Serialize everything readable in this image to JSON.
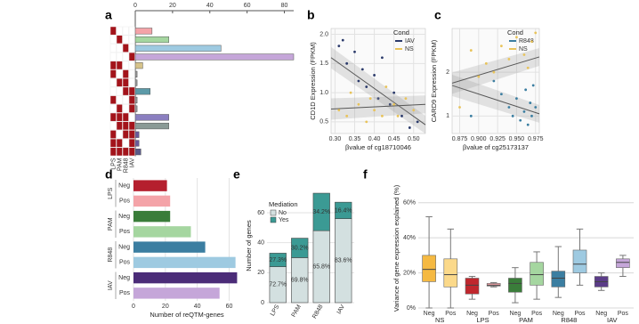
{
  "chart_data": [
    {
      "type": "upset",
      "panel_label": "a",
      "sets": [
        "LPS",
        "PAM",
        "R848",
        "IAV"
      ],
      "values": [
        9,
        18,
        46,
        85,
        4,
        1,
        1,
        8,
        1,
        1,
        18,
        18,
        2,
        2,
        3
      ],
      "colors": [
        "#f4a3a8",
        "#a5d6a0",
        "#9ecae1",
        "#c5a6d9",
        "#d6c38a",
        "#9a9a9a",
        "#9a9a9a",
        "#5c9aa8",
        "#9a9a9a",
        "#9a9a9a",
        "#8b7fc0",
        "#8a9a96",
        "#6b5b9a",
        "#6b5b9a",
        "#5b5b8a"
      ],
      "membership": [
        [
          1,
          0,
          0,
          0
        ],
        [
          0,
          1,
          0,
          0
        ],
        [
          0,
          0,
          1,
          0
        ],
        [
          0,
          0,
          0,
          1
        ],
        [
          1,
          1,
          0,
          0
        ],
        [
          1,
          0,
          1,
          0
        ],
        [
          0,
          1,
          1,
          0
        ],
        [
          0,
          0,
          1,
          1
        ],
        [
          1,
          0,
          0,
          1
        ],
        [
          0,
          1,
          0,
          1
        ],
        [
          1,
          1,
          1,
          0
        ],
        [
          0,
          1,
          1,
          1
        ],
        [
          1,
          0,
          1,
          1
        ],
        [
          1,
          1,
          0,
          1
        ],
        [
          1,
          1,
          1,
          1
        ]
      ],
      "xlim": [
        0,
        85
      ],
      "xticks": [
        0,
        20,
        40,
        60,
        80
      ]
    },
    {
      "type": "scatter",
      "panel_label": "b",
      "x_label": "βvalue of cg18710046",
      "y_label": "CD1D Expression (FPKM)",
      "legend_title": "Cond",
      "xlim": [
        0.29,
        0.53
      ],
      "ylim": [
        0.3,
        2.1
      ],
      "xticks": [
        {
          "value": 0.3,
          "label": "0.30"
        },
        0.35,
        {
          "value": 0.4,
          "label": "0.40"
        },
        0.45,
        {
          "value": 0.5,
          "label": "0.50"
        }
      ],
      "yticks": [
        0.5,
        {
          "value": 1,
          "label": "1.0"
        },
        1.5,
        {
          "value": 2,
          "label": "2.0"
        }
      ],
      "series": [
        {
          "name": "IAV",
          "color": "#2b3a6b",
          "trend": [
            1.6,
            0.45
          ],
          "x": [
            0.31,
            0.32,
            0.33,
            0.35,
            0.36,
            0.37,
            0.38,
            0.4,
            0.41,
            0.42,
            0.44,
            0.45,
            0.47,
            0.49,
            0.51
          ],
          "values": [
            1.8,
            1.9,
            1.5,
            1.7,
            1.2,
            1.4,
            1.1,
            1.3,
            0.9,
            1.6,
            0.8,
            1.0,
            0.6,
            0.4,
            0.5
          ]
        },
        {
          "name": "NS",
          "color": "#e8c35a",
          "trend": [
            0.72,
            0.8
          ],
          "x": [
            0.31,
            0.33,
            0.34,
            0.36,
            0.38,
            0.39,
            0.4,
            0.42,
            0.43,
            0.45,
            0.46,
            0.48,
            0.5
          ],
          "values": [
            0.7,
            0.6,
            1.0,
            0.8,
            0.5,
            0.9,
            0.7,
            0.6,
            1.1,
            0.8,
            0.6,
            0.9,
            0.7
          ]
        }
      ]
    },
    {
      "type": "scatter",
      "panel_label": "c",
      "x_label": "βvalue of cg25173137",
      "y_label": "CARD9 Expression (FPKM)",
      "legend_title": "Cond",
      "xlim": [
        0.865,
        0.98
      ],
      "ylim": [
        0.6,
        3.0
      ],
      "xticks": [
        0.875,
        {
          "value": 0.9,
          "label": "0.900"
        },
        0.925,
        {
          "value": 0.95,
          "label": "0.950"
        },
        0.975
      ],
      "yticks": [
        1,
        2
      ],
      "series": [
        {
          "name": "R848",
          "color": "#3b7ea1",
          "trend": [
            1.7,
            1.05
          ],
          "x": [
            0.89,
            0.92,
            0.93,
            0.94,
            0.945,
            0.95,
            0.955,
            0.96,
            0.962,
            0.965,
            0.968,
            0.97,
            0.972,
            0.975
          ],
          "values": [
            1.0,
            1.8,
            1.5,
            1.2,
            1.0,
            1.4,
            0.9,
            1.1,
            1.6,
            0.8,
            1.3,
            1.0,
            1.7,
            1.2
          ]
        },
        {
          "name": "NS",
          "color": "#e8c35a",
          "trend": [
            1.75,
            2.35
          ],
          "x": [
            0.875,
            0.89,
            0.9,
            0.91,
            0.92,
            0.93,
            0.94,
            0.95,
            0.96,
            0.965,
            0.97,
            0.975
          ],
          "values": [
            1.2,
            2.5,
            1.9,
            2.2,
            2.0,
            2.6,
            2.3,
            2.8,
            2.4,
            2.1,
            2.7,
            2.9
          ]
        }
      ]
    },
    {
      "type": "bar",
      "panel_label": "d",
      "x_label": "Number of reQTM-genes",
      "groups": [
        "LPS",
        "PAM",
        "R848",
        "IAV"
      ],
      "categories": [
        "Neg",
        "Pos",
        "Neg",
        "Pos",
        "Neg",
        "Pos",
        "Neg",
        "Pos"
      ],
      "values": [
        21,
        23,
        23,
        36,
        45,
        64,
        65,
        54
      ],
      "colors": [
        "#b51f2e",
        "#f4a3a8",
        "#3a7d3a",
        "#a5d6a0",
        "#3b7ea1",
        "#9ecae1",
        "#4b2c78",
        "#c5a6d9"
      ],
      "xlim": [
        0,
        67
      ],
      "xticks": [
        0,
        20,
        40,
        60
      ]
    },
    {
      "type": "stacked_bar",
      "panel_label": "e",
      "y_label": "Number of genes",
      "legend_title": "Mediation",
      "categories": [
        "LPS",
        "PAM",
        "R848",
        "IAV"
      ],
      "ylim": [
        0,
        76
      ],
      "yticks": [
        0,
        20,
        40,
        60
      ],
      "series": [
        {
          "name": "No",
          "color": "#d3e0e0",
          "values": [
            24,
            30,
            48,
            56
          ],
          "share_labels": [
            "72.7%",
            "69.8%",
            "65.8%",
            "83.6%"
          ]
        },
        {
          "name": "Yes",
          "color": "#3b9a94",
          "values": [
            9,
            13,
            25,
            11
          ],
          "share_labels": [
            "27.3%",
            "30.2%",
            "34.2%",
            "16.4%"
          ]
        }
      ]
    },
    {
      "type": "box",
      "panel_label": "f",
      "y_label": "Variance of gene expression explained (%)",
      "groups": [
        "NS",
        "LPS",
        "PAM",
        "R848",
        "IAV"
      ],
      "categories": [
        "Neg",
        "Pos",
        "Neg",
        "Pos",
        "Neg",
        "Pos",
        "Neg",
        "Pos",
        "Neg",
        "Pos"
      ],
      "colors": [
        "#f5b942",
        "#fbd98a",
        "#c0272d",
        "#f4a3a8",
        "#3a7d3a",
        "#a5d6a0",
        "#3b7ea1",
        "#9ecae1",
        "#5b3c88",
        "#c5a6d9"
      ],
      "boxes": [
        {
          "min": 0,
          "q1": 15,
          "median": 22,
          "q3": 30,
          "max": 52
        },
        {
          "min": 0,
          "q1": 12,
          "median": 19,
          "q3": 28,
          "max": 45
        },
        {
          "min": 5,
          "q1": 8,
          "median": 13,
          "q3": 17,
          "max": 18
        },
        {
          "min": 12,
          "q1": 12.5,
          "median": 13,
          "q3": 14,
          "max": 14.5
        },
        {
          "min": 3,
          "q1": 9,
          "median": 14,
          "q3": 17,
          "max": 23
        },
        {
          "min": 5,
          "q1": 13,
          "median": 19,
          "q3": 26,
          "max": 32
        },
        {
          "min": 6,
          "q1": 12,
          "median": 17,
          "q3": 21,
          "max": 35
        },
        {
          "min": 13,
          "q1": 20,
          "median": 25,
          "q3": 33,
          "max": 45
        },
        {
          "min": 10,
          "q1": 12,
          "median": 15,
          "q3": 18,
          "max": 20
        },
        {
          "min": 18,
          "q1": 23,
          "median": 26,
          "q3": 28,
          "max": 30
        }
      ],
      "ylim": [
        0,
        68
      ],
      "yticks": [
        {
          "value": 0,
          "label": "0%"
        },
        {
          "value": 20,
          "label": "20%"
        },
        {
          "value": 40,
          "label": "40%"
        },
        {
          "value": 60,
          "label": "60%"
        }
      ]
    }
  ]
}
